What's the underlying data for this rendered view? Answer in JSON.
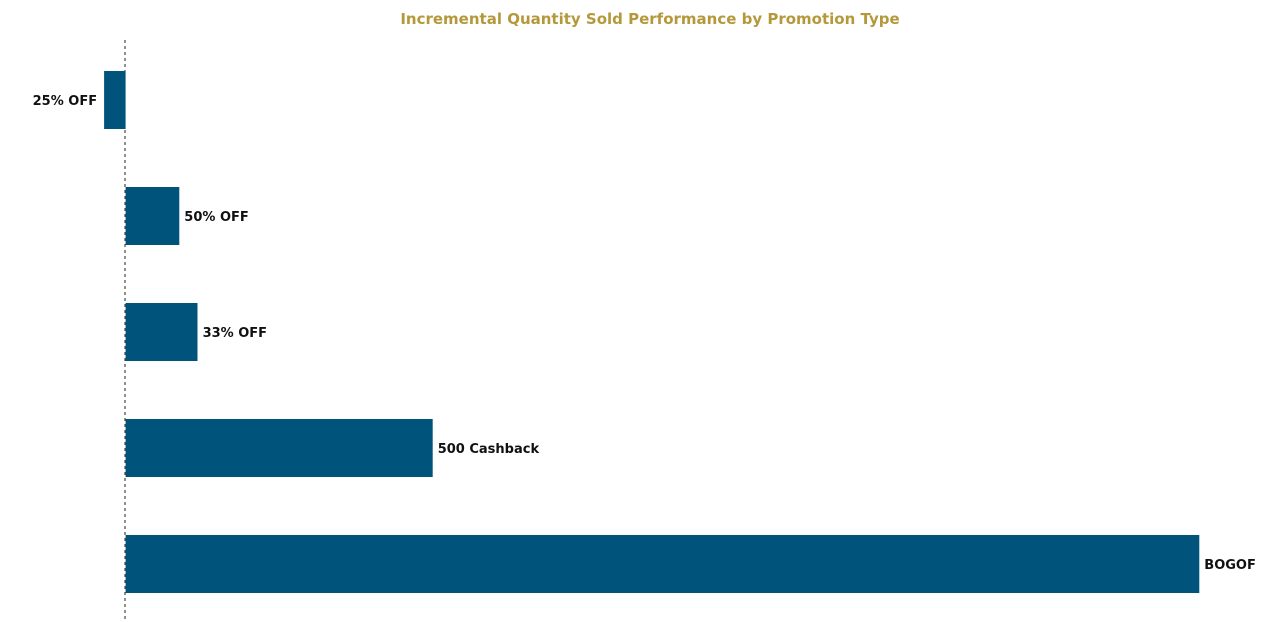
{
  "chart_data": {
    "type": "bar",
    "orientation": "horizontal",
    "title": "Incremental Quantity Sold Performance by Promotion Type",
    "categories": [
      "25% OFF",
      "50% OFF",
      "33% OFF",
      "500 Cashback",
      "BOGOF"
    ],
    "values": [
      -2.0,
      5.0,
      6.7,
      28.6,
      100
    ],
    "xlabel": "",
    "ylabel": "",
    "xlim": [
      -11.7,
      107.7
    ],
    "grid": false,
    "legend": "none",
    "zero_line": "dashed",
    "bar_color": "#00547C",
    "title_color": "#B5983A"
  }
}
